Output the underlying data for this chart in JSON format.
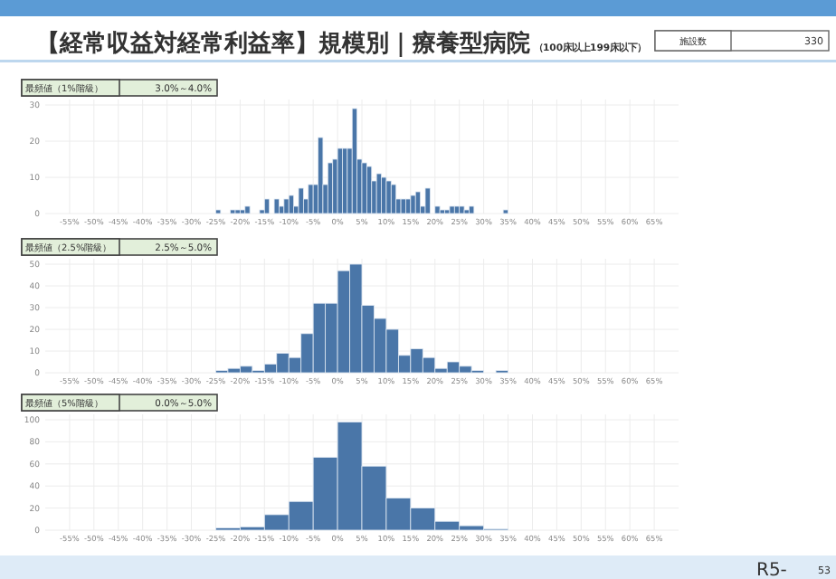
{
  "chart_data": [
    {
      "type": "histogram",
      "title": "【経常収益対経常利益率】規模別｜療養型病院",
      "subtitle": "（100床以上199床以下）",
      "annotations": [
        "最頻値（1%階級）",
        "3.0%～4.0%",
        "施設数",
        "330",
        "R5-",
        "53"
      ],
      "bins": [
        -25,
        -24,
        -23,
        -22,
        -21,
        -20,
        -19,
        -18,
        -17,
        -16,
        -15,
        -14,
        -13,
        -12,
        -11,
        -10,
        -9,
        -8,
        -7,
        -6,
        -5,
        -4,
        -3,
        -2,
        -1,
        0,
        1,
        2,
        3,
        4,
        5,
        6,
        7,
        8,
        9,
        10,
        11,
        12,
        13,
        14,
        15,
        16,
        17,
        18,
        19,
        20,
        21,
        22,
        23,
        24,
        25,
        26,
        27,
        28,
        29,
        30,
        31,
        32,
        33,
        34,
        35
      ],
      "values": [
        1,
        0,
        0,
        1,
        1,
        1,
        2,
        0,
        0,
        1,
        4,
        0,
        4,
        2,
        4,
        5,
        2,
        7,
        4,
        8,
        8,
        21,
        8,
        14,
        15,
        18,
        18,
        18,
        29,
        15,
        14,
        13,
        9,
        11,
        10,
        9,
        8,
        4,
        4,
        4,
        5,
        6,
        2,
        7,
        0,
        2,
        1,
        1,
        2,
        2,
        2,
        1,
        2,
        0,
        0,
        0,
        0,
        0,
        0,
        1
      ],
      "color": "#4a76a8",
      "grid": true,
      "xlim": [
        -60,
        70
      ],
      "ylim": [
        0,
        30
      ],
      "yticks": [
        0,
        10,
        20,
        30
      ],
      "xticks": [
        {
          "value": -55,
          "label": "-55%"
        },
        {
          "value": -50,
          "label": "-50%"
        },
        {
          "value": -45,
          "label": "-45%"
        },
        {
          "value": -40,
          "label": "-40%"
        },
        {
          "value": -35,
          "label": "-35%"
        },
        {
          "value": -30,
          "label": "-30%"
        },
        {
          "value": -25,
          "label": "-25%"
        },
        {
          "value": -20,
          "label": "-20%"
        },
        {
          "value": -15,
          "label": "-15%"
        },
        {
          "value": -10,
          "label": "-10%"
        },
        {
          "value": -5,
          "label": "-5%"
        },
        {
          "value": 0,
          "label": "0%"
        },
        {
          "value": 5,
          "label": "5%"
        },
        {
          "value": 10,
          "label": "10%"
        },
        {
          "value": 15,
          "label": "15%"
        },
        {
          "value": 20,
          "label": "20%"
        },
        {
          "value": 25,
          "label": "25%"
        },
        {
          "value": 30,
          "label": "30%"
        },
        {
          "value": 35,
          "label": "35%"
        },
        {
          "value": 40,
          "label": "40%"
        },
        {
          "value": 45,
          "label": "45%"
        },
        {
          "value": 50,
          "label": "50%"
        },
        {
          "value": 55,
          "label": "55%"
        },
        {
          "value": 60,
          "label": "60%"
        },
        {
          "value": 65,
          "label": "65%"
        }
      ]
    },
    {
      "type": "histogram",
      "annotations": [
        "最頻値（2.5%階級）",
        "2.5%～5.0%"
      ],
      "bins": [
        -25,
        -22.5,
        -20,
        -17.5,
        -15,
        -12.5,
        -10,
        -7.5,
        -5,
        -2.5,
        0,
        2.5,
        5,
        7.5,
        10,
        12.5,
        15,
        17.5,
        20,
        22.5,
        25,
        27.5,
        30,
        32.5,
        35
      ],
      "values": [
        1,
        2,
        3,
        1,
        4,
        9,
        7,
        18,
        32,
        32,
        47,
        50,
        31,
        25,
        20,
        8,
        11,
        7,
        2,
        5,
        3,
        1,
        0,
        1
      ],
      "color": "#4a76a8",
      "grid": true,
      "xlim": [
        -60,
        70
      ],
      "ylim": [
        0,
        50
      ],
      "yticks": [
        0,
        10,
        20,
        30,
        40,
        50
      ],
      "xticks": [
        {
          "value": -55,
          "label": "-55%"
        },
        {
          "value": -50,
          "label": "-50%"
        },
        {
          "value": -45,
          "label": "-45%"
        },
        {
          "value": -40,
          "label": "-40%"
        },
        {
          "value": -35,
          "label": "-35%"
        },
        {
          "value": -30,
          "label": "-30%"
        },
        {
          "value": -25,
          "label": "-25%"
        },
        {
          "value": -20,
          "label": "-20%"
        },
        {
          "value": -15,
          "label": "-15%"
        },
        {
          "value": -10,
          "label": "-10%"
        },
        {
          "value": -5,
          "label": "-5%"
        },
        {
          "value": 0,
          "label": "0%"
        },
        {
          "value": 5,
          "label": "5%"
        },
        {
          "value": 10,
          "label": "10%"
        },
        {
          "value": 15,
          "label": "15%"
        },
        {
          "value": 20,
          "label": "20%"
        },
        {
          "value": 25,
          "label": "25%"
        },
        {
          "value": 30,
          "label": "30%"
        },
        {
          "value": 35,
          "label": "35%"
        },
        {
          "value": 40,
          "label": "40%"
        },
        {
          "value": 45,
          "label": "45%"
        },
        {
          "value": 50,
          "label": "50%"
        },
        {
          "value": 55,
          "label": "55%"
        },
        {
          "value": 60,
          "label": "60%"
        },
        {
          "value": 65,
          "label": "65%"
        }
      ]
    },
    {
      "type": "histogram",
      "annotations": [
        "最頻値（5%階級）",
        "0.0%～5.0%"
      ],
      "bins": [
        -25,
        -20,
        -15,
        -10,
        -5,
        0,
        5,
        10,
        15,
        20,
        25,
        30,
        35
      ],
      "values": [
        2,
        3,
        14,
        26,
        66,
        98,
        58,
        29,
        20,
        8,
        4,
        1
      ],
      "color": "#4a76a8",
      "grid": true,
      "xlim": [
        -60,
        70
      ],
      "ylim": [
        0,
        100
      ],
      "yticks": [
        0,
        20,
        40,
        60,
        80,
        100
      ],
      "xticks": [
        {
          "value": -55,
          "label": "-55%"
        },
        {
          "value": -50,
          "label": "-50%"
        },
        {
          "value": -45,
          "label": "-45%"
        },
        {
          "value": -40,
          "label": "-40%"
        },
        {
          "value": -35,
          "label": "-35%"
        },
        {
          "value": -30,
          "label": "-30%"
        },
        {
          "value": -25,
          "label": "-25%"
        },
        {
          "value": -20,
          "label": "-20%"
        },
        {
          "value": -15,
          "label": "-15%"
        },
        {
          "value": -10,
          "label": "-10%"
        },
        {
          "value": -5,
          "label": "-5%"
        },
        {
          "value": 0,
          "label": "0%"
        },
        {
          "value": 5,
          "label": "5%"
        },
        {
          "value": 10,
          "label": "10%"
        },
        {
          "value": 15,
          "label": "15%"
        },
        {
          "value": 20,
          "label": "20%"
        },
        {
          "value": 25,
          "label": "25%"
        },
        {
          "value": 30,
          "label": "30%"
        },
        {
          "value": 35,
          "label": "35%"
        },
        {
          "value": 40,
          "label": "40%"
        },
        {
          "value": 45,
          "label": "45%"
        },
        {
          "value": 50,
          "label": "50%"
        },
        {
          "value": 55,
          "label": "55%"
        },
        {
          "value": 60,
          "label": "60%"
        },
        {
          "value": 65,
          "label": "65%"
        }
      ]
    }
  ]
}
